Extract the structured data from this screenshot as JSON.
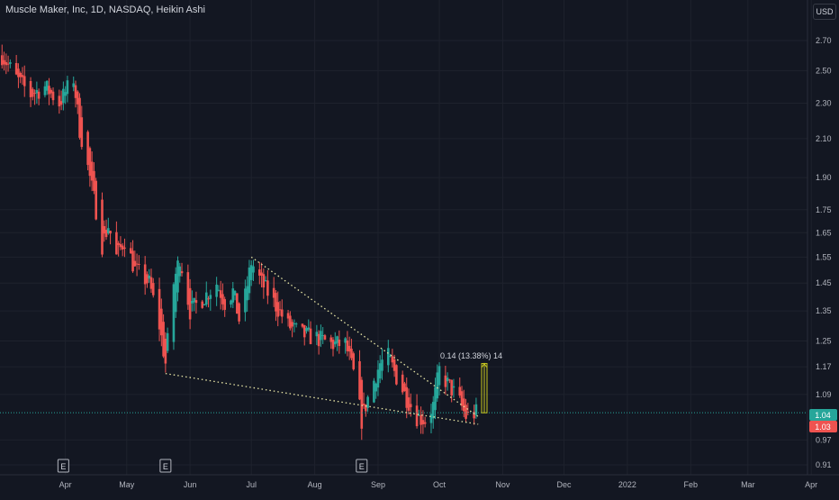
{
  "header": {
    "title": "Muscle Maker, Inc, 1D, NASDAQ, Heikin Ashi",
    "currency": "USD"
  },
  "measure": {
    "label": "0.14 (13.38%) 14"
  },
  "price_tags": {
    "upper": "1.04",
    "lower": "1.03"
  },
  "earnings_marker": "E",
  "colors": {
    "up": "#26a69a",
    "down": "#ef5350",
    "trendline": "#e8e6a6",
    "measure": "#c7c720",
    "background": "#131722"
  },
  "chart_data": {
    "type": "candlestick",
    "y_scale": "log",
    "y_ticks": [
      "2.70",
      "2.50",
      "2.30",
      "2.10",
      "1.90",
      "1.75",
      "1.65",
      "1.55",
      "1.45",
      "1.35",
      "1.25",
      "1.17",
      "1.09",
      "1.04",
      "1.03",
      "0.97",
      "0.91"
    ],
    "x_ticks": [
      "Apr",
      "May",
      "Jun",
      "Jul",
      "Aug",
      "Sep",
      "Oct",
      "Nov",
      "Dec",
      "2022",
      "Feb",
      "Mar",
      "Apr"
    ],
    "earnings_dates": [
      "2021-03-31",
      "2021-05-20",
      "2021-08-24"
    ],
    "last_price": 1.04,
    "current_price_line": 1.04,
    "measure": {
      "from": 1.04,
      "to": 1.18,
      "change": 0.14,
      "percent": 13.38,
      "bars": 14
    },
    "trendlines": [
      {
        "from": {
          "date": "2021-07-01",
          "price": 1.55
        },
        "to": {
          "date": "2021-10-20",
          "price": 1.03
        }
      },
      {
        "from": {
          "date": "2021-05-20",
          "price": 1.15
        },
        "to": {
          "date": "2021-10-20",
          "price": 1.01
        }
      }
    ],
    "trend_path": [
      [
        "2021-03-01",
        2.6
      ],
      [
        "2021-03-08",
        2.45
      ],
      [
        "2021-03-15",
        2.35
      ],
      [
        "2021-03-22",
        2.4
      ],
      [
        "2021-03-29",
        2.3
      ],
      [
        "2021-04-05",
        2.45
      ],
      [
        "2021-04-08",
        2.15
      ],
      [
        "2021-04-13",
        1.9
      ],
      [
        "2021-04-16",
        1.75
      ],
      [
        "2021-04-19",
        1.6
      ],
      [
        "2021-04-22",
        1.68
      ],
      [
        "2021-04-26",
        1.55
      ],
      [
        "2021-04-30",
        1.62
      ],
      [
        "2021-05-05",
        1.5
      ],
      [
        "2021-05-12",
        1.45
      ],
      [
        "2021-05-17",
        1.3
      ],
      [
        "2021-05-20",
        1.18
      ],
      [
        "2021-05-24",
        1.45
      ],
      [
        "2021-05-27",
        1.55
      ],
      [
        "2021-06-01",
        1.35
      ],
      [
        "2021-06-08",
        1.4
      ],
      [
        "2021-06-14",
        1.45
      ],
      [
        "2021-06-18",
        1.38
      ],
      [
        "2021-06-22",
        1.42
      ],
      [
        "2021-06-25",
        1.32
      ],
      [
        "2021-06-28",
        1.4
      ],
      [
        "2021-07-01",
        1.53
      ],
      [
        "2021-07-06",
        1.45
      ],
      [
        "2021-07-12",
        1.38
      ],
      [
        "2021-07-19",
        1.3
      ],
      [
        "2021-07-26",
        1.27
      ],
      [
        "2021-08-02",
        1.26
      ],
      [
        "2021-08-09",
        1.24
      ],
      [
        "2021-08-16",
        1.24
      ],
      [
        "2021-08-20",
        1.15
      ],
      [
        "2021-08-24",
        1.02
      ],
      [
        "2021-08-27",
        1.08
      ],
      [
        "2021-09-02",
        1.18
      ],
      [
        "2021-09-06",
        1.2
      ],
      [
        "2021-09-10",
        1.14
      ],
      [
        "2021-09-15",
        1.08
      ],
      [
        "2021-09-20",
        1.03
      ],
      [
        "2021-09-24",
        1.02
      ],
      [
        "2021-09-28",
        1.06
      ],
      [
        "2021-10-01",
        1.16
      ],
      [
        "2021-10-05",
        1.12
      ],
      [
        "2021-10-10",
        1.08
      ],
      [
        "2021-10-14",
        1.03
      ],
      [
        "2021-10-19",
        1.04
      ]
    ]
  }
}
